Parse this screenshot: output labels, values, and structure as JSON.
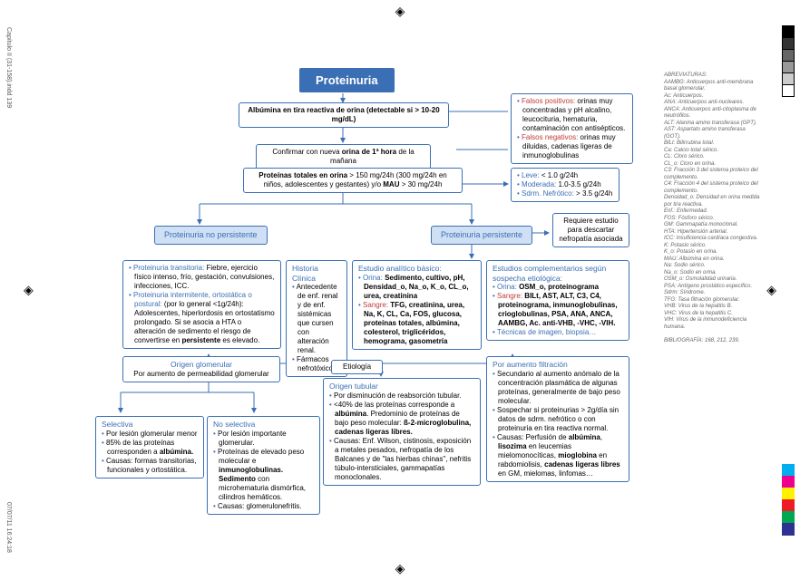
{
  "margins": {
    "left": "Capítulo II (31-158).indd   139",
    "bottom": "07/07/11   16:24:18"
  },
  "title": "Proteinuria",
  "step1": "Albúmina en tira reactiva de orina (detectable si > 10-20 mg/dL)",
  "step2_pre": "Confirmar con nueva ",
  "step2_b": "orina de 1ª hora",
  "step2_post": " de la mañana",
  "step3_pre": "Proteínas totales en orina",
  "step3_mid": " > 150 mg/24h (300 mg/24h en niños, adolescentes y gestantes) y/o  ",
  "step3_b": "MAU",
  "step3_post": " > 30 mg/24h",
  "fp": {
    "label": "Falsos positivos:",
    "text": " orinas muy concentradas y pH alcalino, leucocituria, hematuria, contaminación con antisépticos."
  },
  "fn": {
    "label": "Falsos negativos:",
    "text": " orinas muy diluidas, cadenas ligeras de inmunoglobulinas"
  },
  "grade": {
    "leve": {
      "l": "Leve:",
      "t": " < 1.0 g/24h"
    },
    "mod": {
      "l": "Moderada:",
      "t": " 1.0-3.5 g/24h"
    },
    "nef": {
      "l": "Sdrm. Nefrótico:",
      "t": " > 3.5 g/24h"
    }
  },
  "np_header": "Proteinuria no persistente",
  "pp_header": "Proteinuria persistente",
  "req": "Requiere estudio para descartar nefropatía asociada",
  "np_box": {
    "t1l": "Proteinuria transitoria:",
    "t1t": " Fiebre, ejercicio físico intenso, frío, gestación, convulsiones, infecciones, ICC.",
    "t2l": "Proteinuria intermitente, ortostática o postural:",
    "t2t": " (por lo general <1g/24h): Adolescentes, hiperlordosis en ortostatismo prolongado. Si se asocia a HTA o alteración de sedimento el riesgo de convertirse en ",
    "t2b": "persistente",
    "t2e": " es elevado."
  },
  "hc": {
    "title": "Historia Clínica",
    "b1": "Antecedente de enf. renal y de enf. sistémicas que cursen con alteración renal.",
    "b2": "Fármacos nefrotóxicos"
  },
  "ea": {
    "title": "Estudio analítico básico:",
    "o_l": "Orina:",
    "o_t": "Sedimento, cultivo, pH, Densidad_o, Na_o, K_o, CL_o, urea, creatinina",
    "s_l": "Sangre:",
    "s_t": "TFG, creatinina, urea, Na, K, CL, Ca, FOS, glucosa, proteínas totales, albúmina, colesterol, triglicéridos, hemograma, gasometría"
  },
  "ec": {
    "title": "Estudios complementarios según sospecha etiológica:",
    "o_l": "Orina:",
    "o_t": "OSM_o, proteinograma",
    "s_l": "Sangre:",
    "s_t": "BILt, AST, ALT, C3, C4, proteinograma, inmunoglobulinas, crioglobulinas, PSA, ANA, ANCA, AAMBG, Ac. anti-VHB, -VHC, -VIH.",
    "tec": "Técnicas de imagen, biopsia…"
  },
  "og": {
    "title": "Origen glomerular",
    "sub": "Por aumento de permeabilidad glomerular"
  },
  "etio": "Etiología",
  "ot": {
    "title": "Origen tubular",
    "b1": "Por disminución de reabsorción tubular.",
    "b2a": "<40% de las proteínas corresponde a ",
    "b2b": "albúmina",
    "b2c": ". Predominio de proteínas de bajo peso molecular: ",
    "b2d": "ß-2-microglobulina, cadenas ligeras libres.",
    "b3": "Causas: Enf. Wilson, cistinosis, exposición a metales pesados, nefropatía de los Balcanes y de \"las hierbas chinas\", nefritis túbulo-intersticiales, gammapatías monoclonales."
  },
  "pf": {
    "title": "Por aumento filtración",
    "b1": "Secundario al aumento anómalo de la concentración plasmática de algunas proteínas, generalmente de bajo peso molecular.",
    "b2": "Sospechar si proteinurias > 2g/día sin datos de sdrm. nefrótico o con proteinuria en tira reactiva normal.",
    "b3a": "Causas: Perfusión de ",
    "b3b": "albúmina",
    "b3c": ", ",
    "b3d": "lisozima",
    "b3e": " en leucemias mielomonocíticas, ",
    "b3f": "mioglobina",
    "b3g": " en rabdomiolisis, ",
    "b3h": "cadenas ligeras libres",
    "b3i": " en GM, mielomas, linfomas…"
  },
  "sel": {
    "title": "Selectiva",
    "b1": "Por lesión glomerular menor",
    "b2a": "85% de las proteínas corresponden a ",
    "b2b": "albúmina.",
    "b3": "Causas: formas transitorias, funcionales y ortostática."
  },
  "nsel": {
    "title": "No selectiva",
    "b1": "Por lesión importante glomerular.",
    "b2a": "Proteínas de elevado peso molecular e ",
    "b2b": "inmunoglobulinas. Sedimento",
    "b2c": " con microhematuria dismórfica, cilindros hemáticos.",
    "b3": "Causas: glomerulonefritis."
  },
  "abbrev": {
    "title": "ABREVIATURAS:",
    "lines": [
      "AAMBG: Anticuerpos anti-membrana basal glomerular.",
      "Ac: Anticuerpos.",
      "ANA: Anticuerpos anti-nucleares.",
      "ANCA: Anticuerpos anti-citoplasma de neutrófilos.",
      "ALT: Alanina amino transferasa (GPT).",
      "AST: Aspartato amino transferasa (GOT).",
      "BILt: Bilirrubina total.",
      "Ca: Calcio total sérico.",
      "CL: Cloro sérico.",
      "CL_o: Cloro en orina.",
      "C3: Fracción 3 del sistema proteico del complemento.",
      "C4: Fracción 4 del sistema proteico del complemento.",
      "Densidad_o: Densidad en orina medida por tira reactiva.",
      "Enf.: Enfermedad.",
      "FOS: Fósforo sérico.",
      "GM: Gammapatía monoclonal.",
      "HTA: Hipertensión arterial.",
      "ICC: Insuficiencia cardíaca congestiva.",
      "K: Potasio sérico.",
      "K_o: Potasio en orina.",
      "MAU: Albúmina en orina.",
      "Na: Sodio sérico.",
      "Na_o: Sodio en orina.",
      "OSM_o: Osmolalidad urinaria.",
      "PSA: Antígeno prostático específico.",
      "Sdrm: Síndrome.",
      "TFG: Tasa filtración glomerular.",
      "VHB: Virus de la hepatitis B.",
      "VHC: Virus de la hepatitis C.",
      "VIH: Virus de la inmunodeficiencia humana."
    ],
    "bib": "BIBLIOGRAFÍA: 168, 212, 239."
  }
}
